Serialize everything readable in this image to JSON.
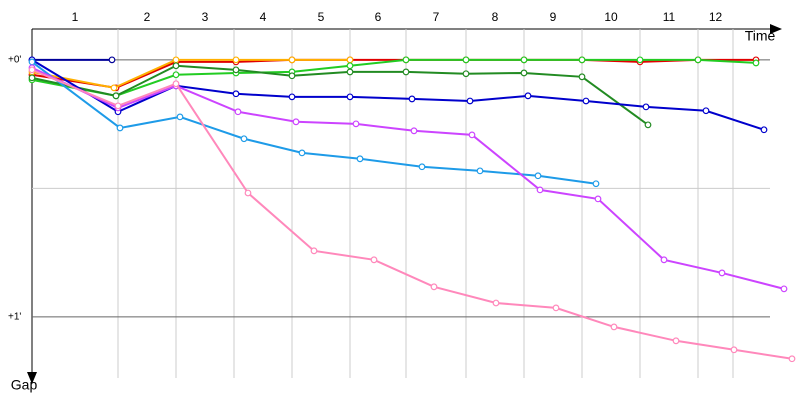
{
  "chart_data": {
    "type": "line",
    "xlabel": "Time",
    "ylabel": "Gap",
    "xlim": [
      0,
      751
    ],
    "ylim": [
      -0.12,
      1.265
    ],
    "xticks": [
      {
        "value": 86,
        "label": "1"
      },
      {
        "value": 144,
        "label": "2"
      },
      {
        "value": 202,
        "label": "3"
      },
      {
        "value": 260,
        "label": "4"
      },
      {
        "value": 318,
        "label": "5"
      },
      {
        "value": 374,
        "label": "6"
      },
      {
        "value": 434,
        "label": "7"
      },
      {
        "value": 492,
        "label": "8"
      },
      {
        "value": 550,
        "label": "9"
      },
      {
        "value": 608,
        "label": "10"
      },
      {
        "value": 666,
        "label": "11"
      },
      {
        "value": 701,
        "label": "12"
      }
    ],
    "yticks": [
      {
        "value": 0,
        "label": "+0'"
      },
      {
        "value": 1,
        "label": "+1'"
      }
    ],
    "minor_yticks": [
      0.5
    ],
    "grid": true,
    "series": [
      {
        "color": "#000099",
        "x": [
          0,
          80
        ],
        "values": [
          0,
          0
        ]
      },
      {
        "color": "#e00000",
        "x": [
          0,
          84,
          144,
          204,
          260,
          318,
          374,
          434,
          492,
          550,
          608,
          666,
          724
        ],
        "values": [
          0.058,
          0.109,
          0.008,
          0.008,
          0,
          0,
          0,
          0,
          0,
          0,
          0.008,
          0,
          0
        ]
      },
      {
        "color": "#ffb000",
        "x": [
          0,
          82,
          144,
          204,
          260,
          318
        ],
        "values": [
          0.047,
          0.109,
          0,
          0,
          0,
          0
        ]
      },
      {
        "color": "#22cc22",
        "x": [
          0,
          84,
          144,
          204,
          260,
          318,
          374,
          434,
          492,
          550,
          608,
          666,
          724
        ],
        "values": [
          0.078,
          0.14,
          0.058,
          0.051,
          0.047,
          0.023,
          0,
          0,
          0,
          0,
          0,
          0,
          0.012
        ]
      },
      {
        "color": "#228b22",
        "x": [
          0,
          84,
          144,
          204,
          260,
          318,
          374,
          434,
          492,
          550,
          616
        ],
        "values": [
          0.07,
          0.14,
          0.023,
          0.039,
          0.062,
          0.047,
          0.047,
          0.054,
          0.051,
          0.066,
          0.253
        ]
      },
      {
        "color": "#0000cc",
        "x": [
          0,
          86,
          144,
          204,
          260,
          318,
          380,
          438,
          496,
          554,
          614,
          674,
          732
        ],
        "values": [
          0,
          0.202,
          0.101,
          0.132,
          0.144,
          0.144,
          0.152,
          0.16,
          0.14,
          0.16,
          0.183,
          0.198,
          0.272
        ]
      },
      {
        "color": "#1e9be8",
        "x": [
          0,
          88,
          148,
          212,
          270,
          328,
          390,
          448,
          506,
          564
        ],
        "values": [
          0.008,
          0.265,
          0.222,
          0.307,
          0.362,
          0.385,
          0.416,
          0.432,
          0.451,
          0.482
        ]
      },
      {
        "color": "#cc44ff",
        "x": [
          0,
          86,
          144,
          206,
          264,
          324,
          382,
          440,
          508,
          566,
          632,
          690,
          752
        ],
        "values": [
          0.031,
          0.187,
          0.101,
          0.202,
          0.241,
          0.249,
          0.276,
          0.292,
          0.506,
          0.541,
          0.778,
          0.829,
          0.891
        ]
      },
      {
        "color": "#ff88bb",
        "x": [
          0,
          86,
          144,
          216,
          282,
          342,
          402,
          464,
          524,
          582,
          644,
          702,
          760
        ],
        "values": [
          0.039,
          0.179,
          0.093,
          0.518,
          0.743,
          0.778,
          0.883,
          0.946,
          0.965,
          1.039,
          1.093,
          1.128,
          1.163
        ]
      }
    ]
  }
}
